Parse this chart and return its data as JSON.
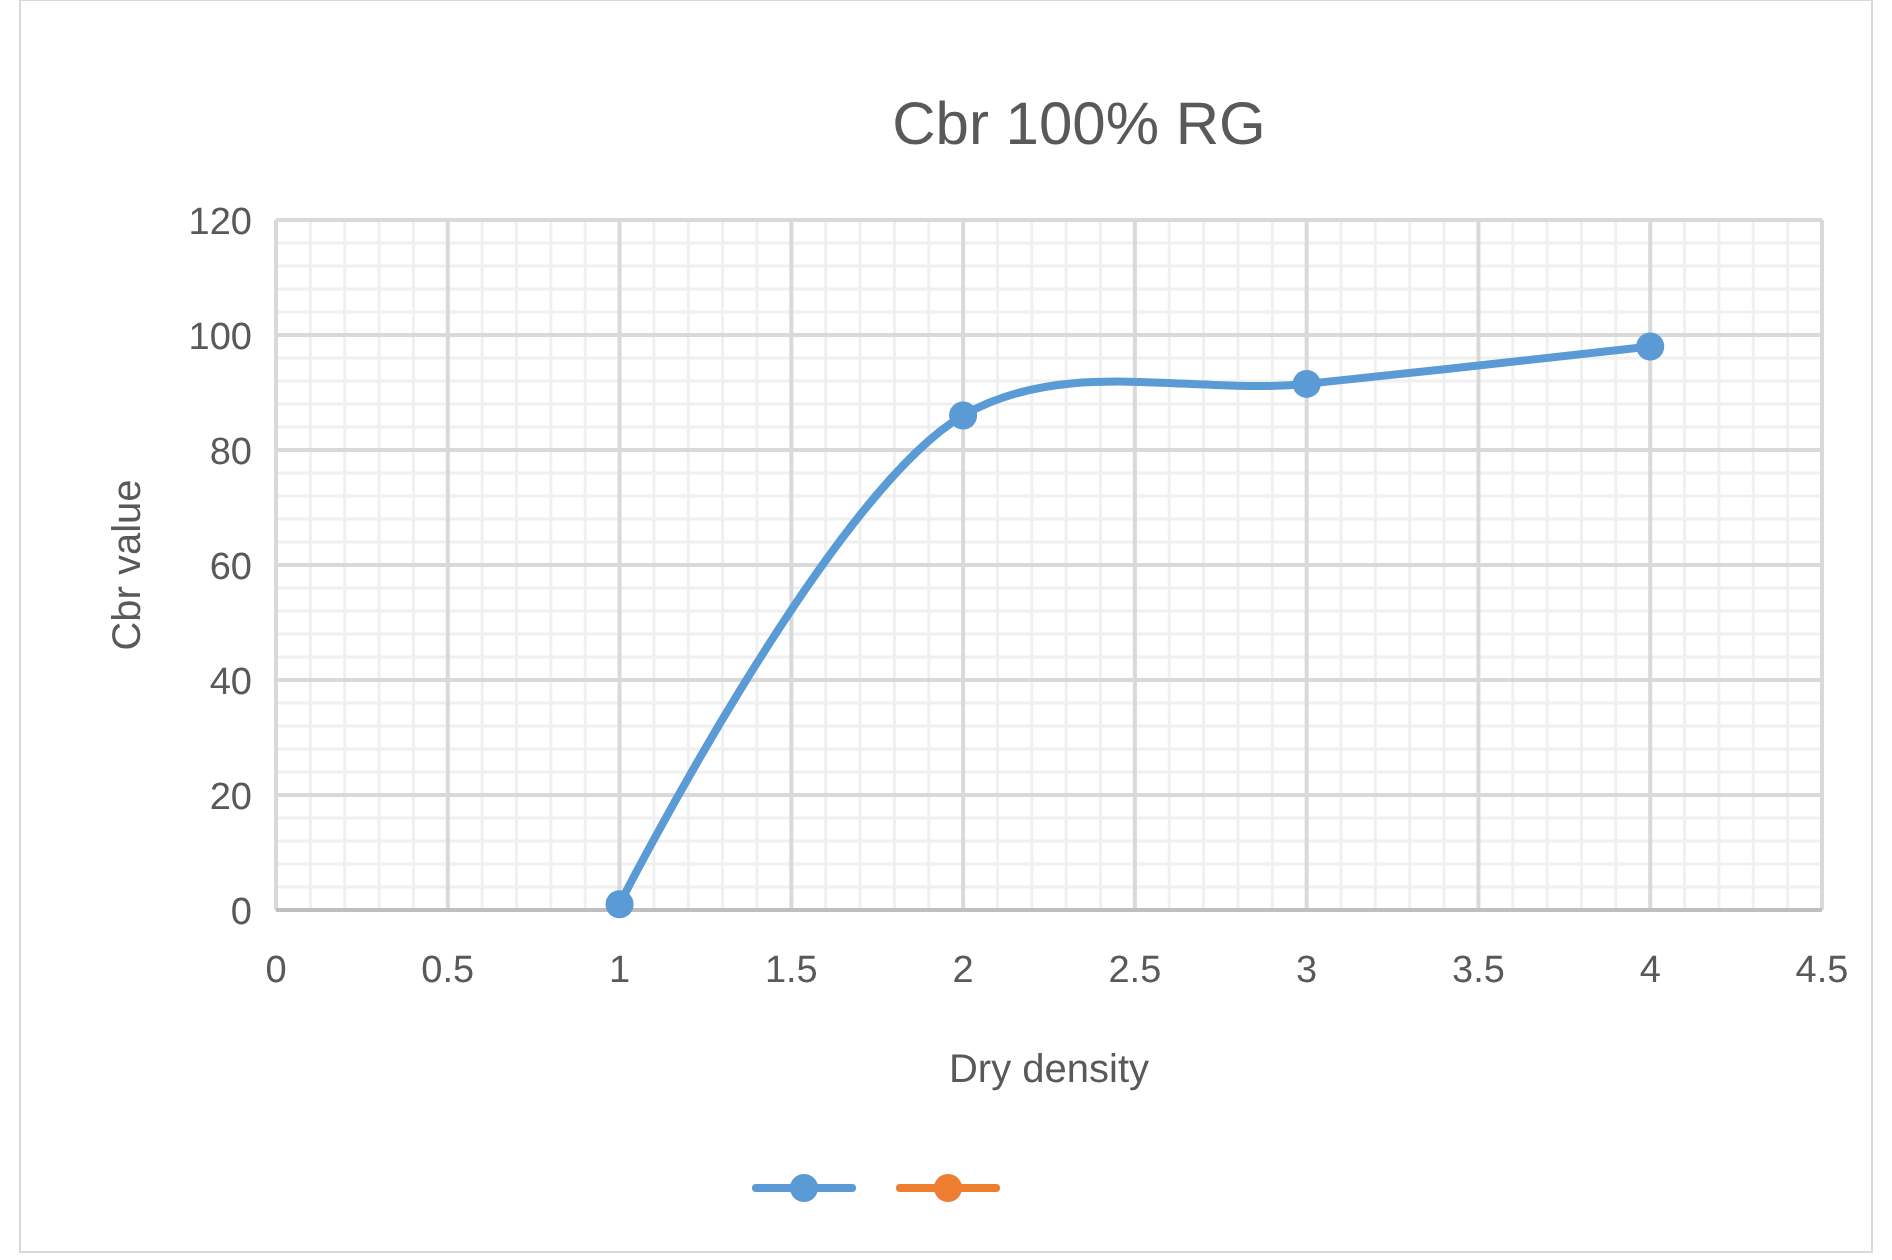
{
  "chart_data": {
    "type": "line",
    "title": "Cbr 100% RG",
    "xlabel": "Dry density",
    "ylabel": "Cbr value",
    "x": [
      1,
      2,
      3,
      4
    ],
    "series": [
      {
        "color": "#5b9bd5",
        "values": [
          1,
          86,
          91.5,
          98
        ]
      },
      {
        "color": "#ed7d31",
        "values": [
          null,
          null,
          null,
          null
        ]
      }
    ],
    "xlim": [
      0,
      4.5
    ],
    "xticks": [
      0,
      0.5,
      1,
      1.5,
      2,
      2.5,
      3,
      3.5,
      4,
      4.5
    ],
    "ylim": [
      0,
      120
    ],
    "yticks": [
      0,
      20,
      40,
      60,
      80,
      100,
      120
    ],
    "grid": true,
    "marker": "circle",
    "line_style": "solid"
  }
}
